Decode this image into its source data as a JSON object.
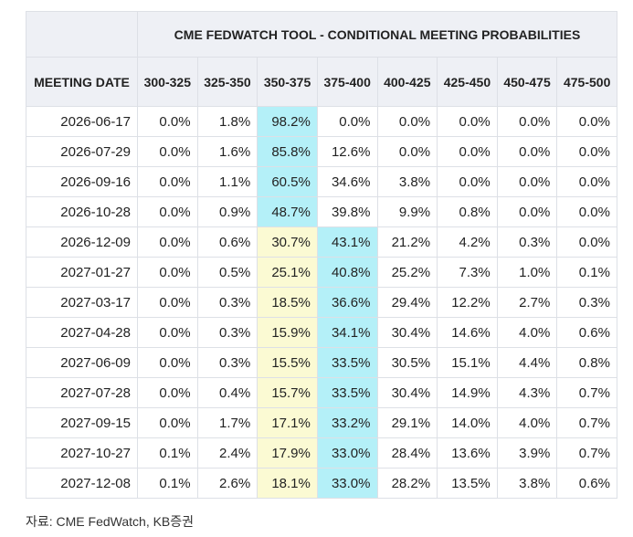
{
  "table": {
    "title": "CME FEDWATCH TOOL - CONDITIONAL MEETING PROBABILITIES",
    "columns": [
      "MEETING DATE",
      "300-325",
      "325-350",
      "350-375",
      "375-400",
      "400-425",
      "425-450",
      "450-475",
      "475-500"
    ],
    "rows": [
      [
        "2026-06-17",
        "0.0%",
        "1.8%",
        "98.2%",
        "0.0%",
        "0.0%",
        "0.0%",
        "0.0%",
        "0.0%"
      ],
      [
        "2026-07-29",
        "0.0%",
        "1.6%",
        "85.8%",
        "12.6%",
        "0.0%",
        "0.0%",
        "0.0%",
        "0.0%"
      ],
      [
        "2026-09-16",
        "0.0%",
        "1.1%",
        "60.5%",
        "34.6%",
        "3.8%",
        "0.0%",
        "0.0%",
        "0.0%"
      ],
      [
        "2026-10-28",
        "0.0%",
        "0.9%",
        "48.7%",
        "39.8%",
        "9.9%",
        "0.8%",
        "0.0%",
        "0.0%"
      ],
      [
        "2026-12-09",
        "0.0%",
        "0.6%",
        "30.7%",
        "43.1%",
        "21.2%",
        "4.2%",
        "0.3%",
        "0.0%"
      ],
      [
        "2027-01-27",
        "0.0%",
        "0.5%",
        "25.1%",
        "40.8%",
        "25.2%",
        "7.3%",
        "1.0%",
        "0.1%"
      ],
      [
        "2027-03-17",
        "0.0%",
        "0.3%",
        "18.5%",
        "36.6%",
        "29.4%",
        "12.2%",
        "2.7%",
        "0.3%"
      ],
      [
        "2027-04-28",
        "0.0%",
        "0.3%",
        "15.9%",
        "34.1%",
        "30.4%",
        "14.6%",
        "4.0%",
        "0.6%"
      ],
      [
        "2027-06-09",
        "0.0%",
        "0.3%",
        "15.5%",
        "33.5%",
        "30.5%",
        "15.1%",
        "4.4%",
        "0.8%"
      ],
      [
        "2027-07-28",
        "0.0%",
        "0.4%",
        "15.7%",
        "33.5%",
        "30.4%",
        "14.9%",
        "4.3%",
        "0.7%"
      ],
      [
        "2027-09-15",
        "0.0%",
        "1.7%",
        "17.1%",
        "33.2%",
        "29.1%",
        "14.0%",
        "4.0%",
        "0.7%"
      ],
      [
        "2027-10-27",
        "0.1%",
        "2.4%",
        "17.9%",
        "33.0%",
        "28.4%",
        "13.6%",
        "3.9%",
        "0.7%"
      ],
      [
        "2027-12-08",
        "0.1%",
        "2.6%",
        "18.1%",
        "33.0%",
        "28.2%",
        "13.5%",
        "3.8%",
        "0.6%"
      ]
    ],
    "highlight": {
      "max": "#b4f0f8",
      "current": "#fbfad3"
    }
  },
  "source": "자료: CME FedWatch, KB증권"
}
